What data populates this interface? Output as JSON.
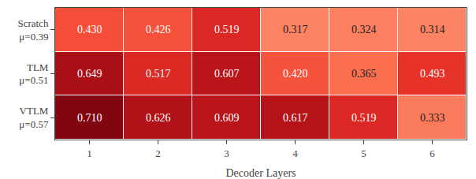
{
  "chart_data": {
    "type": "heatmap",
    "xlabel": "Decoder Layers",
    "categories": [
      "1",
      "2",
      "3",
      "4",
      "5",
      "6"
    ],
    "rows": [
      "Scratch\nμ=0.39",
      "TLM\nμ=0.51",
      "VTLM\nμ=0.57"
    ],
    "values": [
      [
        0.43,
        0.426,
        0.519,
        0.317,
        0.324,
        0.314
      ],
      [
        0.649,
        0.517,
        0.607,
        0.42,
        0.365,
        0.493
      ],
      [
        0.71,
        0.626,
        0.609,
        0.617,
        0.519,
        0.333
      ]
    ],
    "value_labels": [
      [
        "0.430",
        "0.426",
        "0.519",
        "0.317",
        "0.324",
        "0.314"
      ],
      [
        "0.649",
        "0.517",
        "0.607",
        "0.420",
        "0.365",
        "0.493"
      ],
      [
        "0.710",
        "0.626",
        "0.609",
        "0.617",
        "0.519",
        "0.333"
      ]
    ],
    "zlim": [
      0.0,
      0.75
    ],
    "data_labels": true,
    "grid": false
  }
}
